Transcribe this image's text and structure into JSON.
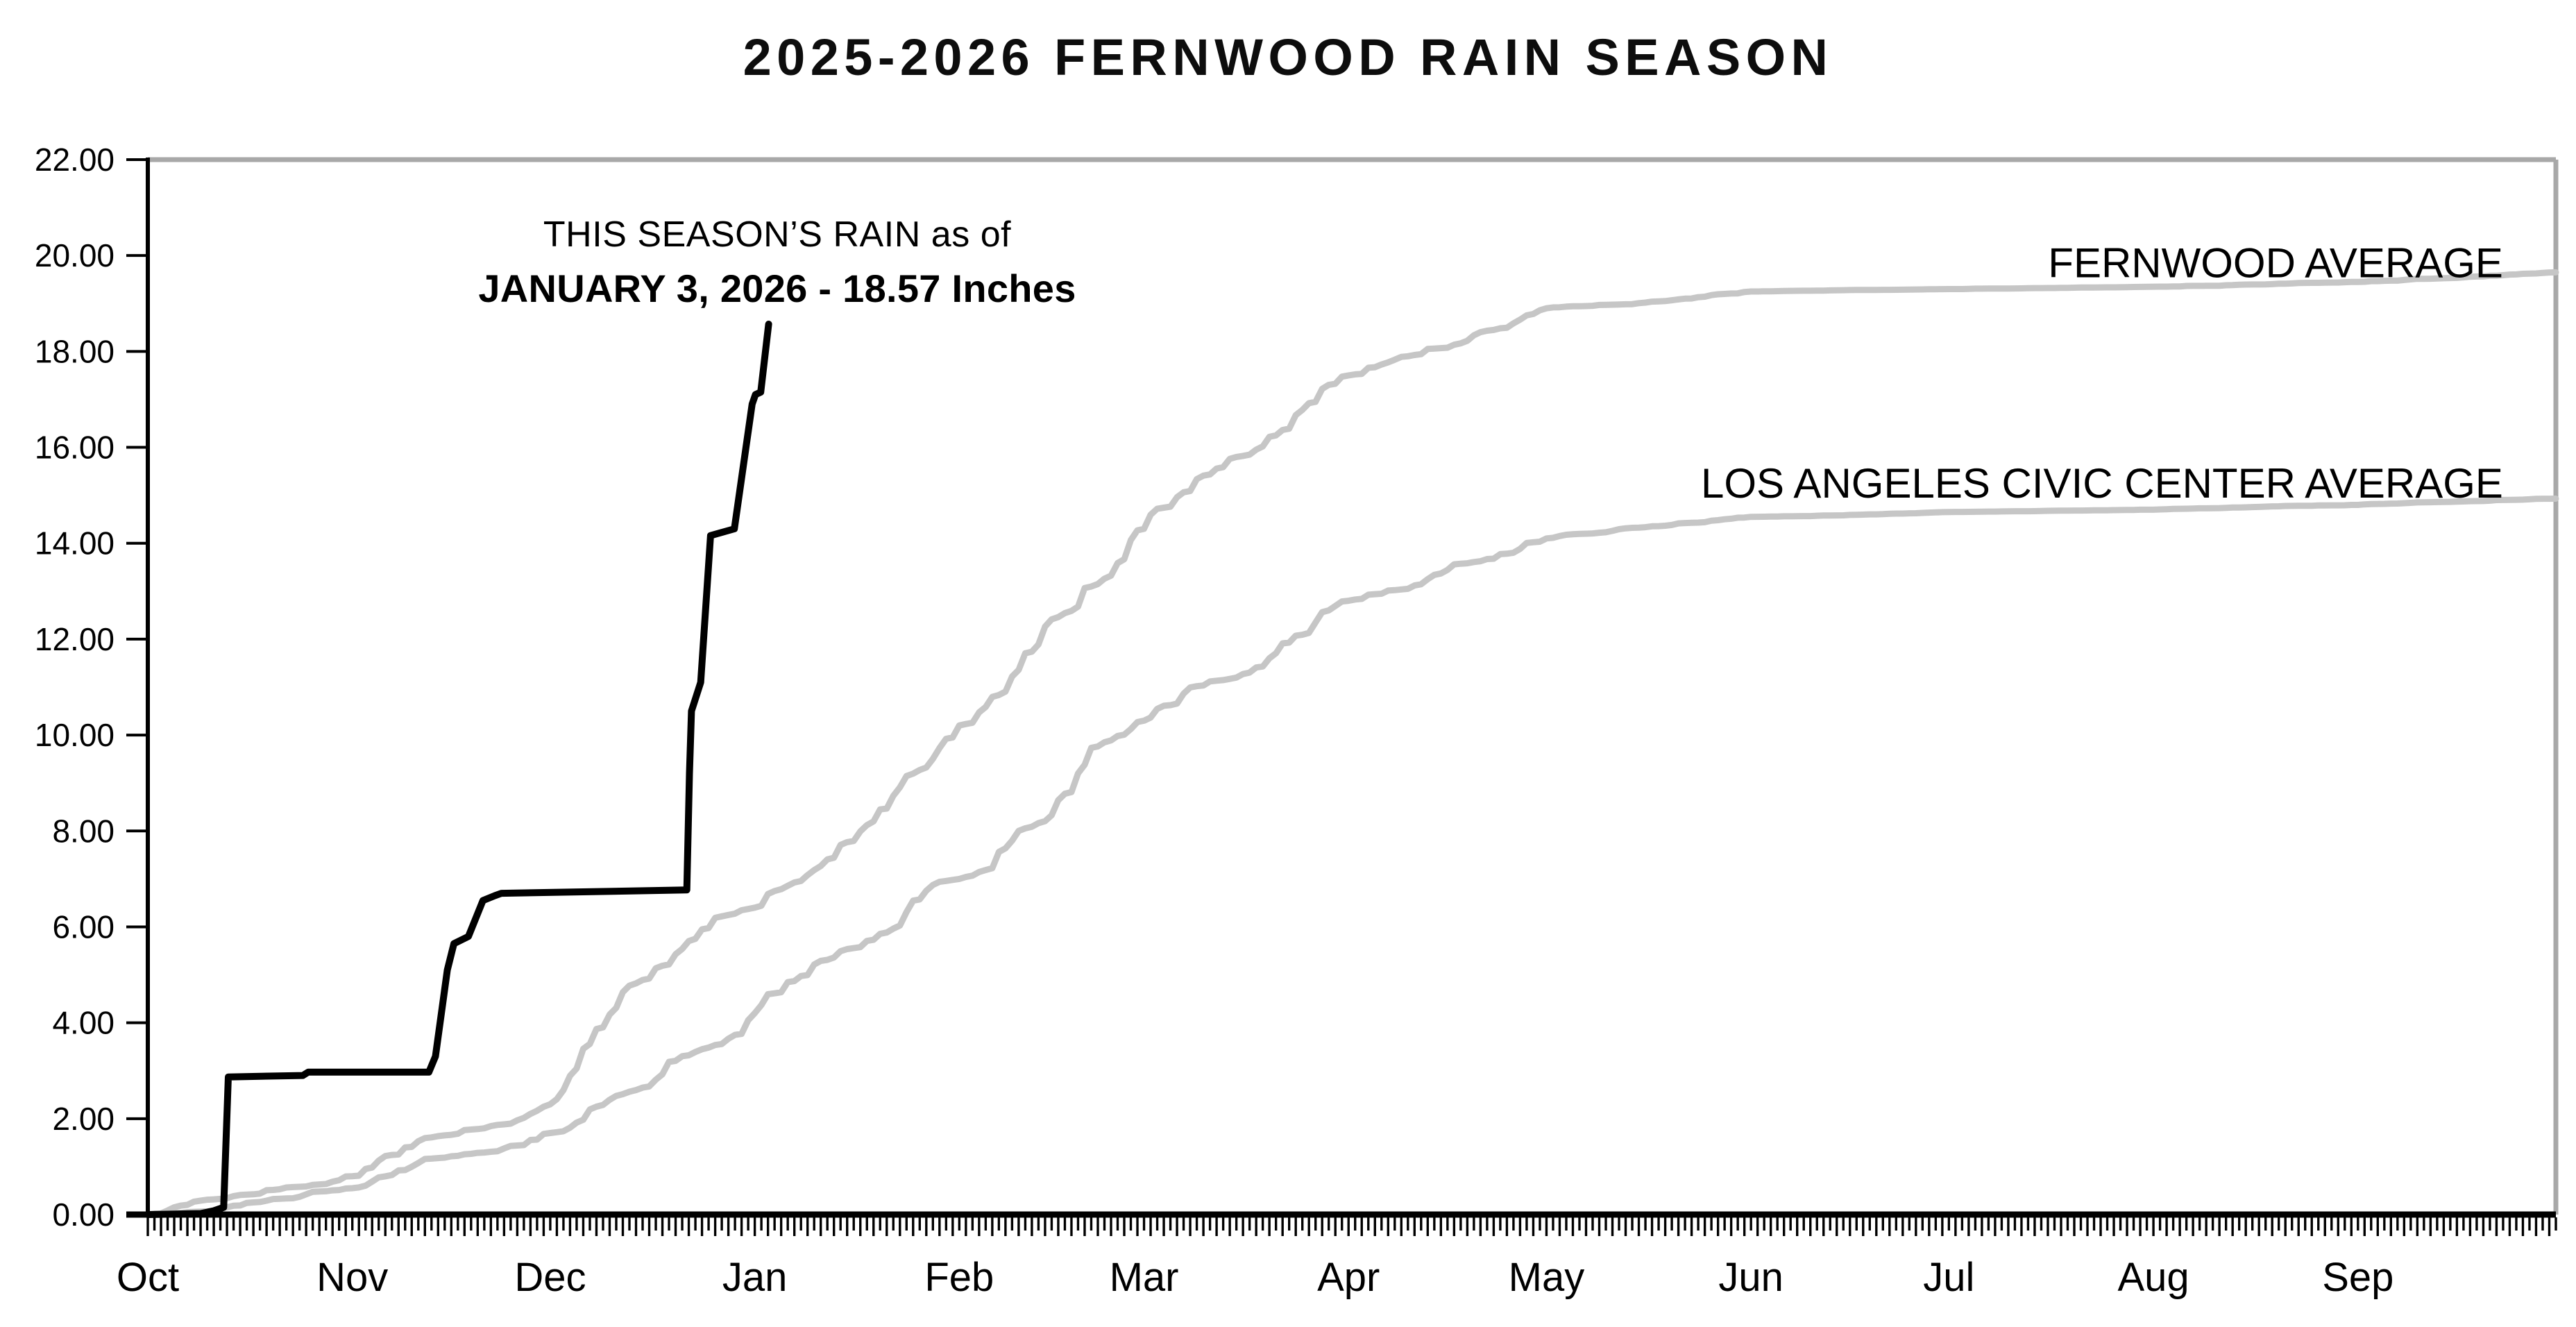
{
  "title": {
    "text": "2025-2026 FERNWOOD RAIN SEASON"
  },
  "annotation": {
    "line1": "THIS SEASON’S RAIN as of",
    "line2": "JANUARY 3, 2026 - 18.57 Inches"
  },
  "colors": {
    "season_line": "#000000",
    "average_line": "#c6c6c6",
    "axis_black": "#000000",
    "box_border_gray": "#a8a8a8",
    "background": "#ffffff"
  },
  "chart_data": {
    "type": "line",
    "title": "2025-2026 FERNWOOD RAIN SEASON",
    "x_axis": {
      "unit": "days from Oct 1",
      "range": [
        0,
        365
      ],
      "minor_tick": "daily",
      "month_labels": [
        "Oct",
        "Nov",
        "Dec",
        "Jan",
        "Feb",
        "Mar",
        "Apr",
        "May",
        "Jun",
        "Jul",
        "Aug",
        "Sep"
      ],
      "month_start_days": [
        0,
        31,
        61,
        92,
        123,
        151,
        182,
        212,
        243,
        273,
        304,
        335
      ]
    },
    "y_axis": {
      "min": 0,
      "max": 22,
      "step": 2,
      "unit": "inches",
      "grid": false,
      "tick_labels": [
        "0.00",
        "2.00",
        "4.00",
        "6.00",
        "8.00",
        "10.00",
        "12.00",
        "14.00",
        "16.00",
        "18.00",
        "20.00",
        "22.00"
      ]
    },
    "as_of_date": "JANUARY 3, 2026",
    "season_total_inches": 18.57,
    "series": [
      {
        "id": "season",
        "name": "THIS SEASON'S RAIN",
        "color": "#000000",
        "style": "step",
        "points": [
          [
            0,
            0.0
          ],
          [
            8,
            0.02
          ],
          [
            10,
            0.08
          ],
          [
            11.5,
            0.15
          ],
          [
            12.2,
            2.87
          ],
          [
            23.5,
            2.9
          ],
          [
            24.3,
            2.97
          ],
          [
            42.6,
            2.97
          ],
          [
            43.6,
            3.3
          ],
          [
            45.4,
            5.1
          ],
          [
            46.4,
            5.65
          ],
          [
            48.6,
            5.8
          ],
          [
            50.8,
            6.55
          ],
          [
            52.6,
            6.65
          ],
          [
            53.6,
            6.7
          ],
          [
            81.7,
            6.77
          ],
          [
            82.1,
            9.2
          ],
          [
            82.4,
            10.5
          ],
          [
            83.8,
            11.1
          ],
          [
            85.3,
            14.16
          ],
          [
            88.9,
            14.3
          ],
          [
            91.6,
            16.9
          ],
          [
            92.1,
            17.1
          ],
          [
            92.9,
            17.15
          ],
          [
            94.1,
            18.57
          ]
        ]
      },
      {
        "id": "fernwood_avg",
        "name": "FERNWOOD AVERAGE",
        "label": "FERNWOOD AVERAGE",
        "color": "#c6c6c6",
        "style": "daily-cumulative",
        "anchors": [
          [
            0,
            0.0
          ],
          [
            31,
            0.8
          ],
          [
            61,
            2.3
          ],
          [
            92,
            6.4
          ],
          [
            123,
            10.2
          ],
          [
            151,
            14.3
          ],
          [
            182,
            17.5
          ],
          [
            212,
            18.9
          ],
          [
            243,
            19.25
          ],
          [
            273,
            19.3
          ],
          [
            304,
            19.35
          ],
          [
            335,
            19.45
          ],
          [
            365,
            19.65
          ]
        ]
      },
      {
        "id": "la_avg",
        "name": "LOS ANGELES CIVIC CENTER AVERAGE",
        "label": "LOS ANGELES CIVIC CENTER AVERAGE",
        "color": "#c6c6c6",
        "style": "daily-cumulative",
        "anchors": [
          [
            0,
            0.0
          ],
          [
            31,
            0.55
          ],
          [
            61,
            1.7
          ],
          [
            92,
            4.2
          ],
          [
            123,
            7.0
          ],
          [
            151,
            10.3
          ],
          [
            182,
            12.8
          ],
          [
            212,
            14.1
          ],
          [
            243,
            14.55
          ],
          [
            273,
            14.65
          ],
          [
            304,
            14.7
          ],
          [
            335,
            14.8
          ],
          [
            365,
            14.93
          ]
        ]
      }
    ],
    "legend_position": "labels-at-line-right"
  }
}
